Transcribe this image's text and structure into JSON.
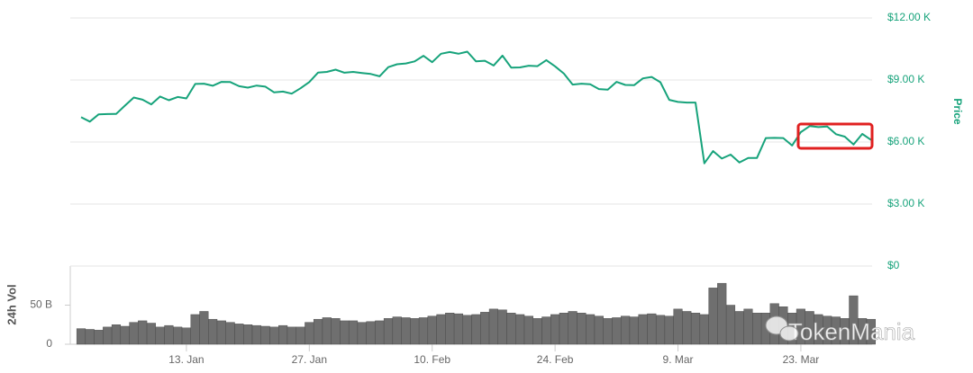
{
  "chart_data": {
    "type": "line",
    "y_title": "Price",
    "y2_title": "24h Vol",
    "watermark": "TokenMania",
    "categories": [
      null,
      null,
      null,
      null,
      null,
      null,
      null,
      null,
      null,
      null,
      null,
      null,
      "13. Jan",
      null,
      null,
      null,
      null,
      null,
      null,
      null,
      null,
      null,
      null,
      null,
      null,
      null,
      "27. Jan",
      null,
      null,
      null,
      null,
      null,
      null,
      null,
      null,
      null,
      null,
      null,
      null,
      null,
      "10. Feb",
      null,
      null,
      null,
      null,
      null,
      null,
      null,
      null,
      null,
      null,
      null,
      null,
      null,
      "24. Feb",
      null,
      null,
      null,
      null,
      null,
      null,
      null,
      null,
      null,
      null,
      null,
      null,
      null,
      "9. Mar",
      null,
      null,
      null,
      null,
      null,
      null,
      null,
      null,
      null,
      null,
      null,
      null,
      null,
      "23. Mar",
      null,
      null,
      null,
      null,
      null,
      null,
      null,
      null
    ],
    "series": [
      {
        "name": "Price",
        "color": "#17a37b",
        "values": [
          7200,
          6985,
          7340,
          7350,
          7360,
          7760,
          8150,
          8050,
          7820,
          8200,
          8020,
          8180,
          8110,
          8810,
          8820,
          8720,
          8910,
          8900,
          8700,
          8630,
          8730,
          8680,
          8400,
          8440,
          8340,
          8600,
          8900,
          9360,
          9390,
          9500,
          9350,
          9390,
          9340,
          9290,
          9180,
          9620,
          9760,
          9800,
          9900,
          10170,
          9860,
          10270,
          10350,
          10270,
          10370,
          9900,
          9930,
          9700,
          10180,
          9600,
          9610,
          9690,
          9670,
          9960,
          9660,
          9310,
          8780,
          8820,
          8790,
          8560,
          8530,
          8910,
          8760,
          8750,
          9080,
          9150,
          8890,
          8040,
          7940,
          7910,
          7910,
          4970,
          5560,
          5200,
          5390,
          5010,
          5230,
          5230,
          6190,
          6200,
          6190,
          5830,
          6480,
          6770,
          6720,
          6750,
          6380,
          6260,
          5880,
          6390,
          6100
        ]
      },
      {
        "name": "24h Vol",
        "color": "#6f6f6f",
        "axis": "y2",
        "values": [
          20,
          19,
          18,
          22,
          25,
          23,
          28,
          30,
          27,
          22,
          24,
          22,
          21,
          38,
          42,
          32,
          30,
          28,
          26,
          25,
          24,
          23,
          22,
          24,
          22,
          22,
          28,
          32,
          34,
          33,
          30,
          30,
          28,
          29,
          30,
          33,
          35,
          34,
          33,
          34,
          36,
          38,
          40,
          39,
          37,
          38,
          41,
          45,
          44,
          40,
          38,
          36,
          33,
          35,
          38,
          40,
          42,
          40,
          38,
          36,
          33,
          34,
          36,
          35,
          38,
          39,
          37,
          36,
          45,
          42,
          40,
          38,
          72,
          78,
          50,
          42,
          45,
          40,
          40,
          52,
          48,
          40,
          45,
          42,
          38,
          36,
          35,
          33,
          62,
          33,
          32
        ]
      }
    ],
    "ylim": [
      0,
      12000
    ],
    "yticks": [
      {
        "value": 0,
        "label": "$0"
      },
      {
        "value": 3000,
        "label": "$3.00 K"
      },
      {
        "value": 6000,
        "label": "$6.00 K"
      },
      {
        "value": 9000,
        "label": "$9.00 K"
      },
      {
        "value": 12000,
        "label": "$12.00 K"
      }
    ],
    "y2lim": [
      0,
      100
    ],
    "y2ticks": [
      0,
      {
        "value": 50,
        "label": "50 B"
      }
    ],
    "grid": true
  }
}
